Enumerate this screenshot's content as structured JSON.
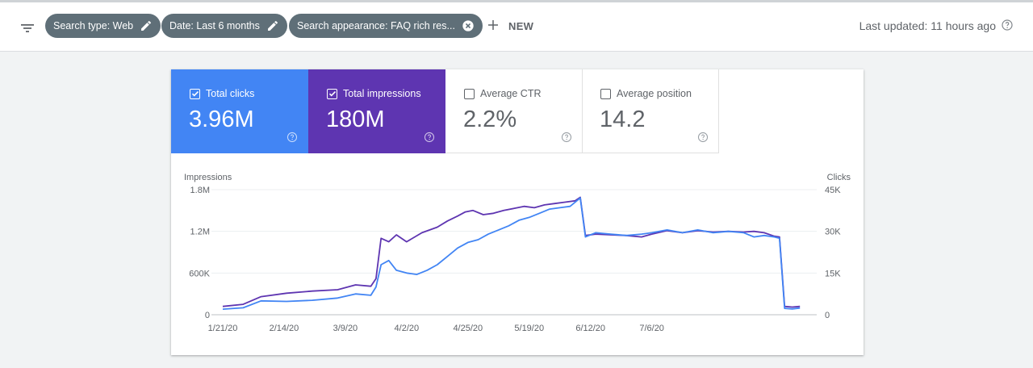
{
  "toolbar": {
    "chips": [
      {
        "label": "Search type: Web",
        "action": "edit"
      },
      {
        "label": "Date: Last 6 months",
        "action": "edit"
      },
      {
        "label": "Search appearance: FAQ rich res...",
        "action": "remove"
      }
    ],
    "new_label": "NEW",
    "last_updated": "Last updated: 11 hours ago"
  },
  "metrics": [
    {
      "label": "Total clicks",
      "value": "3.96M",
      "checked": true,
      "color": "#4285f4"
    },
    {
      "label": "Total impressions",
      "value": "180M",
      "checked": true,
      "color": "#5e35b1"
    },
    {
      "label": "Average CTR",
      "value": "2.2%",
      "checked": false
    },
    {
      "label": "Average position",
      "value": "14.2",
      "checked": false
    }
  ],
  "chart_data": {
    "type": "line",
    "left_axis_title": "Impressions",
    "right_axis_title": "Clicks",
    "left_ticks": [
      "0",
      "600K",
      "1.2M",
      "1.8M"
    ],
    "right_ticks": [
      "0",
      "15K",
      "30K",
      "45K"
    ],
    "ylim_left": [
      0,
      1800000
    ],
    "ylim_right": [
      0,
      45000
    ],
    "x_ticks": [
      "1/21/20",
      "2/14/20",
      "3/9/20",
      "4/2/20",
      "4/25/20",
      "5/19/20",
      "6/12/20",
      "7/6/20"
    ],
    "grid": true,
    "series": [
      {
        "name": "Impressions",
        "axis": "left",
        "color": "#5e35b1",
        "values": [
          [
            0,
            120000
          ],
          [
            8,
            150000
          ],
          [
            15,
            260000
          ],
          [
            25,
            310000
          ],
          [
            35,
            340000
          ],
          [
            45,
            360000
          ],
          [
            52,
            430000
          ],
          [
            58,
            410000
          ],
          [
            60,
            520000
          ],
          [
            62,
            1100000
          ],
          [
            65,
            1050000
          ],
          [
            68,
            1150000
          ],
          [
            72,
            1050000
          ],
          [
            78,
            1180000
          ],
          [
            84,
            1260000
          ],
          [
            88,
            1350000
          ],
          [
            92,
            1420000
          ],
          [
            95,
            1480000
          ],
          [
            98,
            1500000
          ],
          [
            102,
            1440000
          ],
          [
            106,
            1460000
          ],
          [
            110,
            1500000
          ],
          [
            114,
            1530000
          ],
          [
            118,
            1560000
          ],
          [
            122,
            1540000
          ],
          [
            126,
            1580000
          ],
          [
            130,
            1600000
          ],
          [
            134,
            1620000
          ],
          [
            138,
            1640000
          ],
          [
            140,
            1690000
          ],
          [
            142,
            1140000
          ],
          [
            146,
            1160000
          ],
          [
            152,
            1150000
          ],
          [
            158,
            1140000
          ],
          [
            164,
            1120000
          ],
          [
            168,
            1160000
          ],
          [
            174,
            1210000
          ],
          [
            180,
            1180000
          ],
          [
            186,
            1210000
          ],
          [
            192,
            1190000
          ],
          [
            198,
            1200000
          ],
          [
            204,
            1190000
          ],
          [
            208,
            1200000
          ],
          [
            212,
            1180000
          ],
          [
            216,
            1130000
          ],
          [
            218,
            1120000
          ],
          [
            220,
            120000
          ],
          [
            223,
            110000
          ],
          [
            226,
            120000
          ]
        ]
      },
      {
        "name": "Clicks",
        "axis": "right",
        "color": "#4285f4",
        "values": [
          [
            0,
            2000
          ],
          [
            8,
            2500
          ],
          [
            15,
            5000
          ],
          [
            25,
            4800
          ],
          [
            35,
            5200
          ],
          [
            45,
            6000
          ],
          [
            52,
            7500
          ],
          [
            58,
            7000
          ],
          [
            60,
            10000
          ],
          [
            62,
            18000
          ],
          [
            65,
            19500
          ],
          [
            68,
            16000
          ],
          [
            72,
            15000
          ],
          [
            76,
            14500
          ],
          [
            80,
            16000
          ],
          [
            84,
            18000
          ],
          [
            88,
            21000
          ],
          [
            92,
            24000
          ],
          [
            96,
            26000
          ],
          [
            100,
            27000
          ],
          [
            104,
            29000
          ],
          [
            108,
            30500
          ],
          [
            112,
            32000
          ],
          [
            116,
            34000
          ],
          [
            120,
            35000
          ],
          [
            124,
            36500
          ],
          [
            128,
            38000
          ],
          [
            132,
            38500
          ],
          [
            136,
            39000
          ],
          [
            140,
            42000
          ],
          [
            142,
            28000
          ],
          [
            146,
            29500
          ],
          [
            152,
            29000
          ],
          [
            158,
            28500
          ],
          [
            164,
            29000
          ],
          [
            168,
            29500
          ],
          [
            174,
            30500
          ],
          [
            180,
            29500
          ],
          [
            186,
            30500
          ],
          [
            192,
            29500
          ],
          [
            198,
            30000
          ],
          [
            204,
            29500
          ],
          [
            208,
            28000
          ],
          [
            212,
            28500
          ],
          [
            216,
            28000
          ],
          [
            218,
            27500
          ],
          [
            220,
            2300
          ],
          [
            223,
            2100
          ],
          [
            226,
            2400
          ]
        ]
      }
    ]
  }
}
